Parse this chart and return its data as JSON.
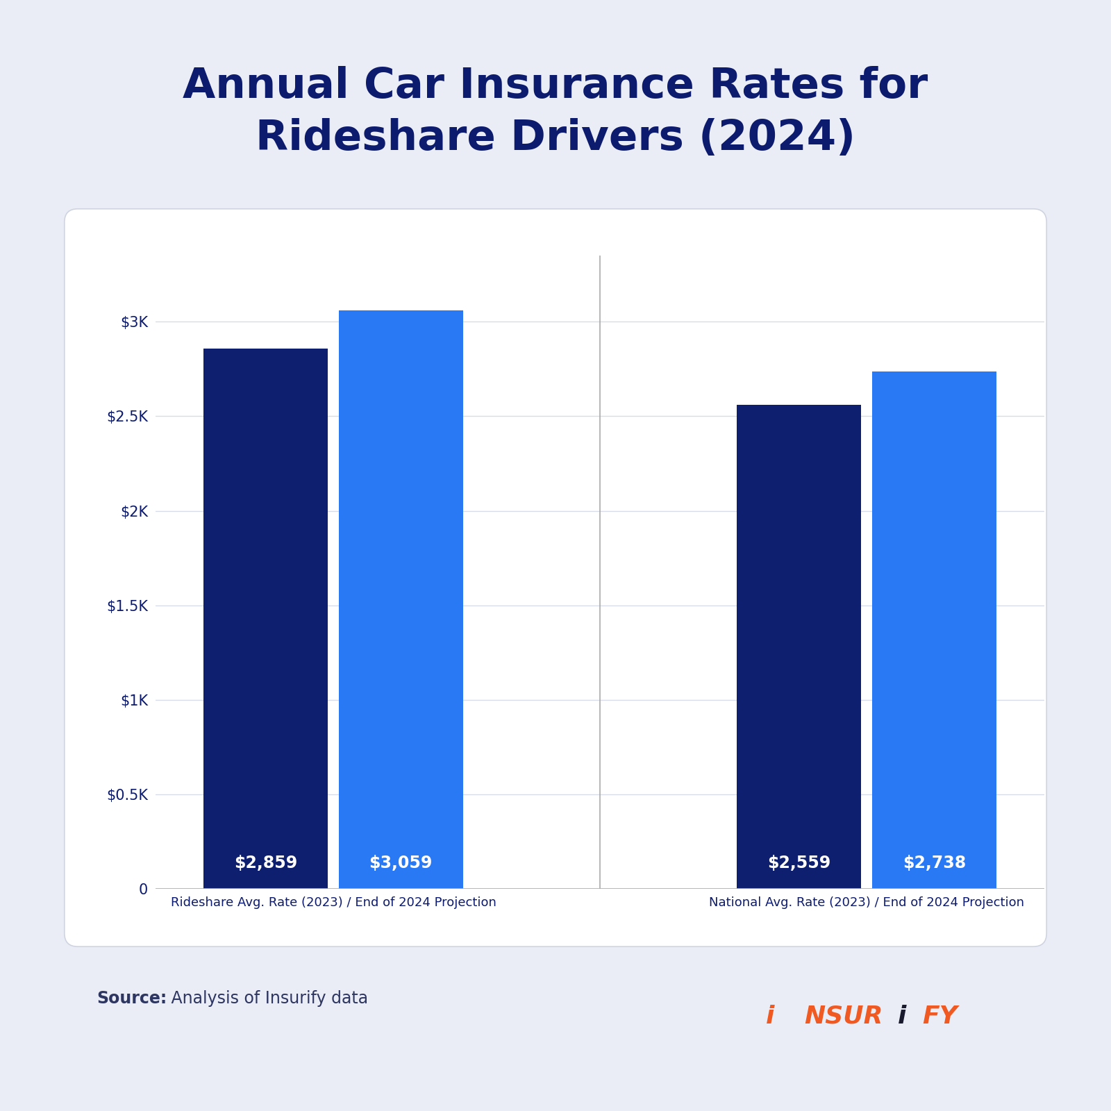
{
  "title_line1": "Annual Car Insurance Rates for",
  "title_line2": "Rideshare Drivers (2024)",
  "title_color": "#0d1b6e",
  "background_color": "#eaedf5",
  "chart_bg_color": "#ffffff",
  "groups": [
    {
      "label": "Rideshare Avg. Rate (2023) / End of 2024 Projection",
      "bars": [
        {
          "value": 2859,
          "color": "#0d1f6e",
          "label": "$2,859"
        },
        {
          "value": 3059,
          "color": "#2979f5",
          "label": "$3,059"
        }
      ]
    },
    {
      "label": "National Avg. Rate (2023) / End of 2024 Projection",
      "bars": [
        {
          "value": 2559,
          "color": "#0d1f6e",
          "label": "$2,559"
        },
        {
          "value": 2738,
          "color": "#2979f5",
          "label": "$2,738"
        }
      ]
    }
  ],
  "yticks": [
    0,
    500,
    1000,
    1500,
    2000,
    2500,
    3000
  ],
  "ytick_labels": [
    "0",
    "$0.5K",
    "$1K",
    "$1.5K",
    "$2K",
    "$2.5K",
    "$3K"
  ],
  "ylim": [
    0,
    3350
  ],
  "source_bold": "Source:",
  "source_text": " Analysis of Insurify data",
  "source_color": "#2d3561",
  "insurify_color": "#f05a22",
  "insurify_i_color": "#1a1a2e",
  "value_label_color": "#ffffff",
  "value_label_fontsize": 17,
  "group_label_fontsize": 13,
  "group_label_color": "#0d1b6e",
  "ytick_color": "#0d1b6e",
  "ytick_fontsize": 15,
  "title_fontsize": 44,
  "source_fontsize": 17
}
